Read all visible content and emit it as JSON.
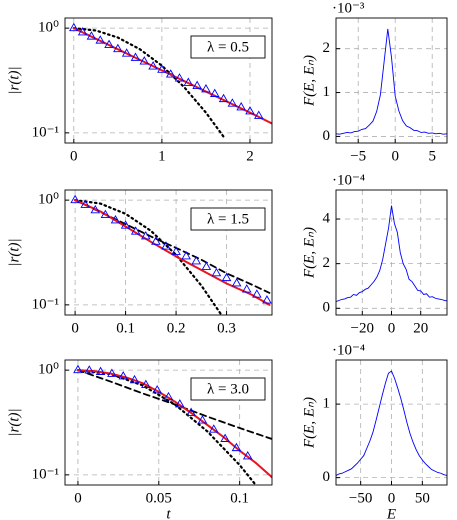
{
  "chart_data": [
    {
      "type": "line",
      "ylabel": "|r(t)|",
      "annotation": "λ = 0.5",
      "ylog": true,
      "grid": true,
      "xlim": [
        -0.1,
        2.25
      ],
      "xticks": [
        0,
        1,
        2
      ],
      "ylim": [
        0.08,
        1.25
      ],
      "yticks": [
        {
          "value": 1,
          "label": "10⁰"
        },
        {
          "value": 0.1,
          "label": "10⁻¹"
        }
      ],
      "series": [
        {
          "style": "dotted",
          "color": "#000000",
          "x": [
            0,
            0.25,
            0.5,
            0.75,
            1,
            1.25,
            1.5,
            1.7
          ],
          "values": [
            1,
            0.95,
            0.814,
            0.629,
            0.438,
            0.275,
            0.156,
            0.092
          ]
        },
        {
          "style": "solid",
          "color": "#e8141e",
          "x": [
            0,
            0.5,
            1,
            1.5,
            2,
            2.25
          ],
          "values": [
            1,
            0.628,
            0.395,
            0.248,
            0.156,
            0.123
          ]
        },
        {
          "style": "triangle",
          "color": "#0000ff",
          "x": [
            0,
            0.1,
            0.2,
            0.3,
            0.4,
            0.5,
            0.6,
            0.7,
            0.8,
            0.9,
            1,
            1.1,
            1.2,
            1.3,
            1.4,
            1.5,
            1.6,
            1.7,
            1.8,
            1.9,
            2,
            2.1
          ],
          "values": [
            1,
            0.91,
            0.83,
            0.76,
            0.69,
            0.63,
            0.57,
            0.52,
            0.48,
            0.43,
            0.4,
            0.36,
            0.33,
            0.3,
            0.28,
            0.26,
            0.235,
            0.21,
            0.19,
            0.175,
            0.16,
            0.145
          ]
        }
      ]
    },
    {
      "type": "line",
      "ylabel": "F(E, Eₙ)",
      "scale_label": "·10⁻³",
      "grid": true,
      "xlim": [
        -8,
        7
      ],
      "xticks": [
        {
          "value": -5,
          "label": "−5"
        },
        0,
        5
      ],
      "ylim": [
        -0.15,
        2.7
      ],
      "yticks": [
        0,
        1,
        2
      ],
      "series": [
        {
          "style": "solid",
          "color": "#0000ff",
          "x": [
            -8,
            -7.5,
            -7,
            -6.5,
            -6,
            -5.5,
            -5,
            -4.5,
            -4,
            -3.5,
            -3,
            -2.5,
            -2,
            -1.5,
            -1,
            -0.5,
            0,
            0.5,
            1,
            1.5,
            2,
            2.5,
            3,
            3.5,
            4,
            4.5,
            5,
            5.5,
            6,
            6.5,
            7
          ],
          "values": [
            0.06,
            0.05,
            0.07,
            0.09,
            0.08,
            0.11,
            0.12,
            0.16,
            0.18,
            0.26,
            0.35,
            0.57,
            0.95,
            1.7,
            2.45,
            1.8,
            0.92,
            0.58,
            0.36,
            0.24,
            0.2,
            0.14,
            0.13,
            0.09,
            0.1,
            0.07,
            0.08,
            0.06,
            0.07,
            0.05,
            0.06
          ]
        }
      ]
    },
    {
      "type": "line",
      "ylabel": "|r(t)|",
      "annotation": "λ = 1.5",
      "ylog": true,
      "grid": true,
      "xlim": [
        -0.02,
        0.39
      ],
      "xticks": [
        0,
        0.1,
        0.2,
        0.3
      ],
      "ylim": [
        0.08,
        1.25
      ],
      "yticks": [
        {
          "value": 1,
          "label": "10⁰"
        },
        {
          "value": 0.1,
          "label": "10⁻¹"
        }
      ],
      "series": [
        {
          "style": "dotted",
          "color": "#000000",
          "x": [
            0,
            0.05,
            0.1,
            0.15,
            0.2,
            0.25,
            0.29
          ],
          "values": [
            1,
            0.928,
            0.74,
            0.51,
            0.3,
            0.153,
            0.08
          ]
        },
        {
          "style": "dashed",
          "color": "#000000",
          "x": [
            0,
            0.05,
            0.1,
            0.15,
            0.2,
            0.25,
            0.3,
            0.35,
            0.385
          ],
          "values": [
            1,
            0.77,
            0.59,
            0.45,
            0.35,
            0.27,
            0.2,
            0.156,
            0.13
          ]
        },
        {
          "style": "solid",
          "color": "#e8141e",
          "x": [
            0,
            0.05,
            0.1,
            0.15,
            0.2,
            0.25,
            0.3,
            0.35,
            0.385
          ],
          "values": [
            1,
            0.78,
            0.56,
            0.4,
            0.29,
            0.215,
            0.16,
            0.125,
            0.1
          ]
        },
        {
          "style": "triangle",
          "color": "#0000ff",
          "x": [
            0,
            0.02,
            0.04,
            0.06,
            0.08,
            0.1,
            0.12,
            0.14,
            0.16,
            0.18,
            0.2,
            0.22,
            0.24,
            0.26,
            0.28,
            0.3,
            0.32,
            0.34,
            0.36,
            0.38
          ],
          "values": [
            1,
            0.9,
            0.8,
            0.72,
            0.64,
            0.57,
            0.5,
            0.45,
            0.4,
            0.36,
            0.32,
            0.29,
            0.26,
            0.23,
            0.2,
            0.18,
            0.16,
            0.14,
            0.125,
            0.11
          ]
        }
      ]
    },
    {
      "type": "line",
      "ylabel": "F(E, Eₙ)",
      "scale_label": "·10⁻⁴",
      "grid": true,
      "xlim": [
        -38,
        38
      ],
      "xticks": [
        {
          "value": -20,
          "label": "−20"
        },
        0,
        20
      ],
      "ylim": [
        -0.3,
        5.3
      ],
      "yticks": [
        0,
        2,
        4
      ],
      "series": [
        {
          "style": "solid",
          "color": "#0000ff",
          "x": [
            -38,
            -36,
            -34,
            -32,
            -30,
            -28,
            -26,
            -24,
            -22,
            -20,
            -18,
            -16,
            -14,
            -12,
            -10,
            -8,
            -6,
            -4,
            -2,
            0,
            2,
            4,
            6,
            8,
            10,
            12,
            14,
            16,
            18,
            20,
            22,
            24,
            26,
            28,
            30,
            32,
            34,
            36,
            38
          ],
          "values": [
            0.3,
            0.35,
            0.4,
            0.42,
            0.48,
            0.5,
            0.62,
            0.58,
            0.7,
            0.75,
            0.85,
            0.9,
            1.05,
            1.2,
            1.4,
            1.7,
            2.2,
            2.9,
            3.6,
            4.6,
            3.8,
            3.4,
            2.5,
            2,
            1.75,
            1.3,
            1.2,
            1,
            0.8,
            0.78,
            0.62,
            0.65,
            0.5,
            0.52,
            0.45,
            0.42,
            0.4,
            0.36,
            0.33
          ]
        }
      ]
    },
    {
      "type": "line",
      "ylabel": "|r(t)|",
      "xlabel": "t",
      "annotation": "λ = 3.0",
      "ylog": true,
      "grid": true,
      "xlim": [
        -0.008,
        0.12
      ],
      "xticks": [
        0,
        0.05,
        0.1
      ],
      "ylim": [
        0.08,
        1.25
      ],
      "yticks": [
        {
          "value": 1,
          "label": "10⁰"
        },
        {
          "value": 0.1,
          "label": "10⁻¹"
        }
      ],
      "series": [
        {
          "style": "dotted",
          "color": "#000000",
          "x": [
            0,
            0.02,
            0.04,
            0.06,
            0.08,
            0.1,
            0.11
          ],
          "values": [
            1,
            0.92,
            0.715,
            0.47,
            0.26,
            0.124,
            0.08
          ]
        },
        {
          "style": "dashed",
          "color": "#000000",
          "x": [
            0,
            0.02,
            0.04,
            0.06,
            0.08,
            0.1,
            0.12
          ],
          "values": [
            1,
            0.78,
            0.6,
            0.47,
            0.36,
            0.28,
            0.22
          ]
        },
        {
          "style": "solid",
          "color": "#e8141e",
          "x": [
            0,
            0.01,
            0.02,
            0.03,
            0.04,
            0.05,
            0.06,
            0.07,
            0.08,
            0.09,
            0.1,
            0.11,
            0.12
          ],
          "values": [
            1,
            0.98,
            0.93,
            0.85,
            0.75,
            0.62,
            0.5,
            0.39,
            0.3,
            0.23,
            0.17,
            0.13,
            0.095
          ]
        },
        {
          "style": "triangle",
          "color": "#0000ff",
          "x": [
            0,
            0.007,
            0.014,
            0.021,
            0.028,
            0.035,
            0.042,
            0.049,
            0.056,
            0.063,
            0.07,
            0.077,
            0.084,
            0.091,
            0.098,
            0.105
          ],
          "values": [
            1,
            0.99,
            0.96,
            0.92,
            0.87,
            0.8,
            0.72,
            0.64,
            0.55,
            0.47,
            0.39,
            0.33,
            0.27,
            0.22,
            0.18,
            0.15
          ]
        }
      ]
    },
    {
      "type": "line",
      "ylabel": "F(E, Eₙ)",
      "xlabel": "E",
      "scale_label": "·10⁻⁴",
      "grid": true,
      "xlim": [
        -90,
        90
      ],
      "xticks": [
        {
          "value": -50,
          "label": "−50"
        },
        0,
        50
      ],
      "ylim": [
        -0.1,
        1.6
      ],
      "yticks": [
        0,
        1
      ],
      "series": [
        {
          "style": "solid",
          "color": "#0000ff",
          "x": [
            -90,
            -85,
            -80,
            -75,
            -70,
            -65,
            -60,
            -55,
            -50,
            -45,
            -40,
            -35,
            -30,
            -25,
            -20,
            -15,
            -10,
            -5,
            0,
            5,
            10,
            15,
            20,
            25,
            30,
            35,
            40,
            45,
            50,
            55,
            60,
            65,
            70,
            75,
            80,
            85,
            90
          ],
          "values": [
            0.03,
            0.05,
            0.06,
            0.08,
            0.1,
            0.12,
            0.16,
            0.2,
            0.25,
            0.3,
            0.4,
            0.5,
            0.62,
            0.78,
            0.95,
            1.12,
            1.28,
            1.42,
            1.45,
            1.35,
            1.22,
            1.08,
            0.92,
            0.75,
            0.6,
            0.48,
            0.38,
            0.3,
            0.24,
            0.19,
            0.15,
            0.11,
            0.09,
            0.07,
            0.06,
            0.04,
            0.03
          ]
        }
      ]
    }
  ]
}
